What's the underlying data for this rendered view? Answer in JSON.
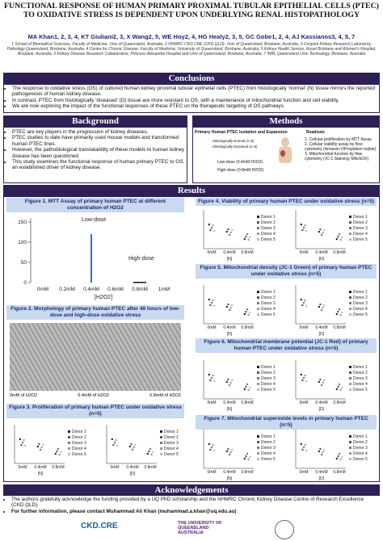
{
  "header": {
    "title": "FUNCTIONAL RESPONSE OF HUMAN PRIMARY PROXIMAL TUBULAR EPITHELIAL CELLS (PTEC) TO OXIDATIVE STRESS IS DEPENDENT UPON UNDERLYING RENAL HISTOPATHOLOGY",
    "authors": "MA Khan1, 2, 3, 4, KT Giuliani2, 3, X Wang2, 5, WE Hoy2, 4, HG Healy2, 3, 5, GC Gobe1, 2, 4, AJ Kassianos3, 4, 5, 7",
    "affiliations": "1 School of Biomedical Sciences, Faculty of Medicine, Univ of Queensland, Australia, 2 NHMRC CKD CRE (CKD.QLD), Univ of Queensland, Brisbane, Australia, 3 Conjoint Kidney Research Laboratory, Pathology Queensland, Brisbane, Australia, 4 Centre for Chronic Disease, Faculty of Medicine, University of Queensland, Brisbane, Australia, 5 Kidney Health Service, Royal Brisbane and Women's Hospital, Brisbane, Australia, 6 Kidney Disease Research Collaborative, Princess Alexandra Hospital and Univ of Queensland, Brisbane, Australia, 7 IHBI, Queensland Univ Technology, Brisbane, Australia"
  },
  "conclusions": {
    "heading": "Conclusions",
    "bullets": [
      "The response to oxidative stress (OS) of cultured human kidney proximal tubular epithelial cells (PTEC) from histologically 'normal' (N) tissue mirrors the reported pathogenesis of human kidney disease.",
      "In contrast, PTEC from histologically 'diseased' (D) tissue are more resistant to OS, with a maintenance of mitochondrial function and cell viability.",
      "We are now exploring the impact of the functional responses of these PTEC on the therapeutic targeting of OS pathways."
    ]
  },
  "background": {
    "heading": "Background",
    "bullets": [
      "PTEC are key players in the progression of kidney diseases.",
      "PTEC studies to date have primarily used mouse models and transformed human PTEC lines.",
      "However, the pathobiological translatability of these models to human kidney disease has been questioned.",
      "This study examines the functional response of human primary PTEC to OS, an established driver of kidney disease."
    ]
  },
  "methods": {
    "heading": "Methods",
    "isolation": "Primary Human PTEC Isolation and Expansion",
    "normal": "Histologically Normal (n=5)",
    "diseased": "Histologically Diseased (n=5)",
    "low": "Low-dose (0.4mM H2O2)",
    "high": "High-dose (0.8mM H2O2)",
    "readouts_title": "Readouts",
    "readouts": [
      "1. Cellular proliferation by MTT Assay",
      "2. Cellular viability assay by flow cytometry (Annexin-V/Propidium Iodide)",
      "3. Mitochondrial function by flow cytometry (JC-1 Staining; MitoSOX)"
    ]
  },
  "results": {
    "heading": "Results",
    "donors": [
      "Donor 1",
      "Donor 2",
      "Donor 3",
      "Donor 4",
      "Donor 5"
    ],
    "groups": [
      "[N]",
      "[D]"
    ],
    "doses": [
      "0mM",
      "0.4mM",
      "0.8mM"
    ],
    "figure1": {
      "caption": "Figure 1. MTT Assay of primary human PTEC at different concentration of H2O2",
      "categories": [
        "0mM",
        "0.2mM",
        "0.4mM",
        "0.6mM",
        "0.8mM",
        "1mM"
      ],
      "values": [
        null,
        null,
        120,
        null,
        2,
        null
      ],
      "ylim": [
        0,
        160
      ],
      "yticks": [
        0,
        50,
        100,
        150
      ],
      "xlabel": "[H2O2]",
      "annotations": [
        "Low-dose",
        "High-dose"
      ]
    },
    "figure2": {
      "caption": "Figure 2. Morphology of primary human PTEC after 48 hours of low-dose and high-dose oxidative stress",
      "labels": [
        "0mM of H2O2",
        "0.4mM of H2O2",
        "0.8mM of H2O2"
      ]
    },
    "figure3": {
      "caption": "Figure 3. Proliferation of primary human PTEC under oxidative stress (n=5)"
    },
    "figure4": {
      "caption": "Figure 4. Viability of primary human PTEC under oxidative stress (n=5)"
    },
    "figure5": {
      "caption": "Figure 5. Mitochondrial density (JC-1 Green) of primary human PTEC under oxidative stress (n=5)"
    },
    "figure6": {
      "caption": "Figure 6. Mitochondrial membrane potential (JC-1 Red) of primary human PTEC under oxidative stress (n=5)"
    },
    "figure7": {
      "caption": "Figure 7. Mitochondrial superoxide levels in primary human PTEC (n=5)"
    }
  },
  "acknowledgements": {
    "heading": "Acknowledgements",
    "text": "The authors gratefully acknowledge the funding provided by a UQ PhD scholarship and the NHMRC Chronic Kidney Disease Centre of Research Excellence (CKD.QLD).",
    "contact": "For further information, please contact Muhammad Ali Khan (muhammad.a.khan@uq.edu.au)"
  },
  "logos": [
    "CKD.CRE",
    "THE UNIVERSITY OF QUEENSLAND AUSTRALIA"
  ]
}
